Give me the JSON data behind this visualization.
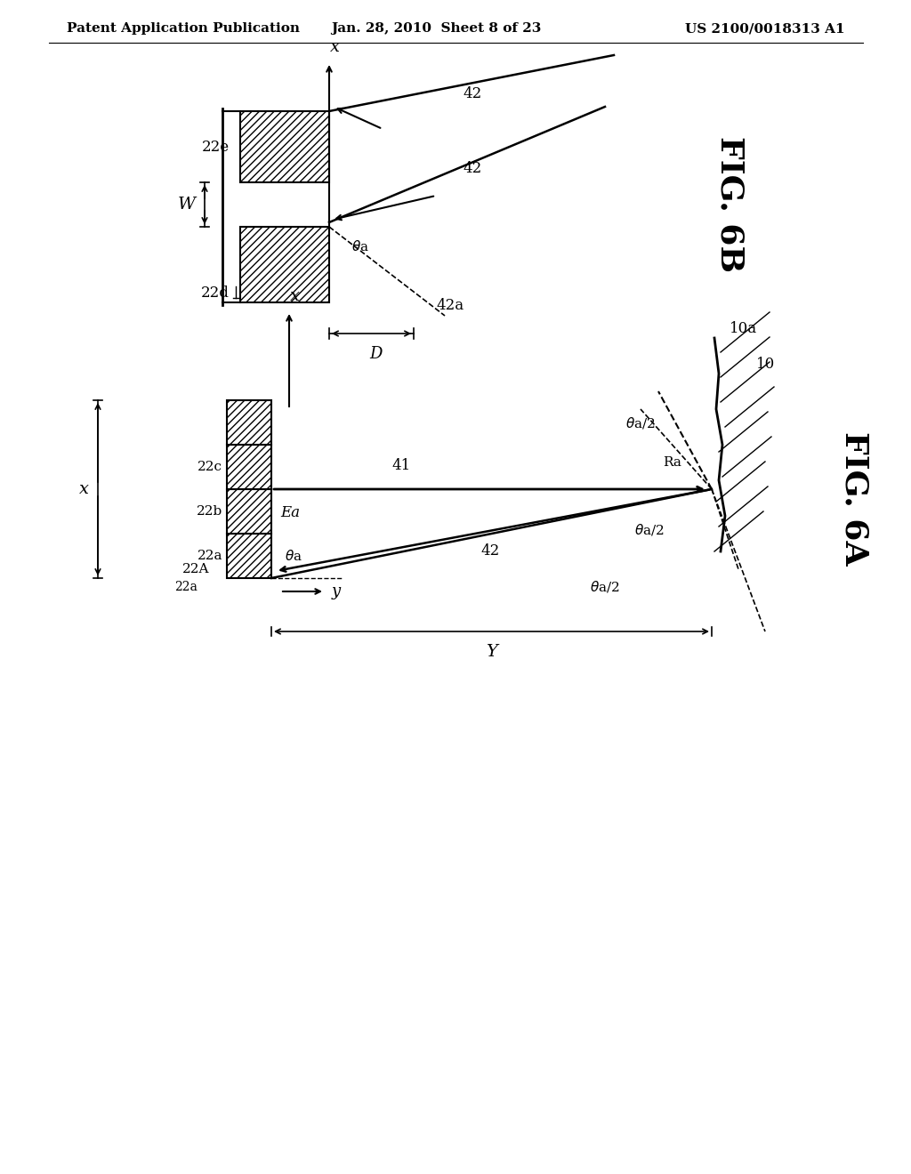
{
  "bg_color": "#ffffff",
  "line_color": "#000000",
  "header_left": "Patent Application Publication",
  "header_mid": "Jan. 28, 2010  Sheet 8 of 23",
  "header_right": "US 2100/0018313 A1",
  "fig6b_label": "FIG. 6B",
  "fig6a_label": "FIG. 6A"
}
